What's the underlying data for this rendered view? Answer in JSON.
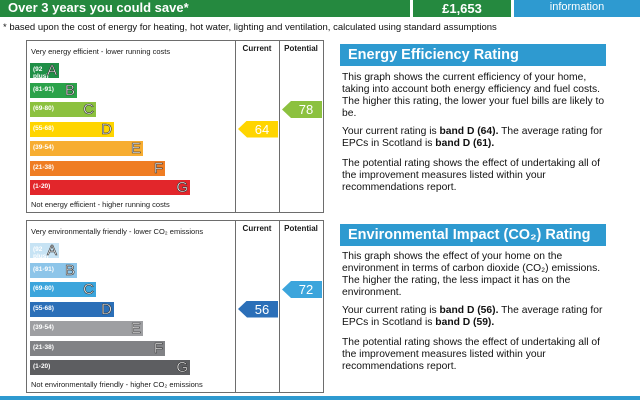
{
  "banner": {
    "title": "Over 3 years you could save*",
    "value": "£1,653",
    "info": "information"
  },
  "footnote": "* based upon the cost of energy for heating, hot water, lighting and ventilation, calculated using standard assumptions",
  "energy_graph": {
    "header_current": "Current",
    "header_potential": "Potential",
    "top_caption": "Very energy efficient - lower running costs",
    "bottom_caption": "Not energy efficient - higher running costs",
    "bands": [
      {
        "range": "(92 plus)",
        "letter": "A",
        "color": "#1f8f47",
        "width_frac": 0.14
      },
      {
        "range": "(81-91)",
        "letter": "B",
        "color": "#2ba24a",
        "width_frac": 0.23
      },
      {
        "range": "(69-80)",
        "letter": "C",
        "color": "#8cc13f",
        "width_frac": 0.32
      },
      {
        "range": "(55-68)",
        "letter": "D",
        "color": "#ffd500",
        "width_frac": 0.41
      },
      {
        "range": "(39-54)",
        "letter": "E",
        "color": "#f7ad31",
        "width_frac": 0.55
      },
      {
        "range": "(21-38)",
        "letter": "F",
        "color": "#ef7d23",
        "width_frac": 0.66
      },
      {
        "range": "(1-20)",
        "letter": "G",
        "color": "#e2262b",
        "width_frac": 0.78
      }
    ],
    "current": {
      "value": "64",
      "color": "#ffd500"
    },
    "potential": {
      "value": "78",
      "color": "#8cc13f"
    }
  },
  "env_graph": {
    "header_current": "Current",
    "header_potential": "Potential",
    "top_caption": "Very environmentally friendly - lower CO₂ emissions",
    "bottom_caption": "Not environmentally friendly - higher CO₂ emissions",
    "bands": [
      {
        "range": "(92 plus)",
        "letter": "A",
        "color": "#c7e3f4",
        "width_frac": 0.14
      },
      {
        "range": "(81-91)",
        "letter": "B",
        "color": "#8dc5e9",
        "width_frac": 0.23
      },
      {
        "range": "(69-80)",
        "letter": "C",
        "color": "#3ca5dc",
        "width_frac": 0.32
      },
      {
        "range": "(55-68)",
        "letter": "D",
        "color": "#2b6fb8",
        "width_frac": 0.41
      },
      {
        "range": "(39-54)",
        "letter": "E",
        "color": "#9e9fa2",
        "width_frac": 0.55
      },
      {
        "range": "(21-38)",
        "letter": "F",
        "color": "#818285",
        "width_frac": 0.66
      },
      {
        "range": "(1-20)",
        "letter": "G",
        "color": "#5d5e61",
        "width_frac": 0.78
      }
    ],
    "current": {
      "value": "56",
      "color": "#2b6fb8"
    },
    "potential": {
      "value": "72",
      "color": "#3ca5dc"
    }
  },
  "energy_text": {
    "heading": "Energy Efficiency Rating",
    "p1": "This graph shows the current efficiency of your home, taking into account both energy efficiency and fuel costs. The higher this rating, the lower your fuel bills are likely to be.",
    "p2_pre": "Your current rating is ",
    "p2_current": "band D (64).",
    "p2_mid": " The average rating for EPCs in Scotland is ",
    "p2_avg": "band D (61).",
    "p3": "The potential rating shows the effect of undertaking all of the improvement measures listed within your recommendations report."
  },
  "env_text": {
    "heading": "Environmental Impact (CO₂) Rating",
    "p1": "This graph shows the effect of your home on the environment in terms of carbon dioxide (CO₂) emissions. The higher the rating, the less impact it has on the environment.",
    "p2_pre": "Your current rating is ",
    "p2_current": "band D (56).",
    "p2_mid": " The average rating for EPCs in Scotland is ",
    "p2_avg": "band D (59).",
    "p3": "The potential rating shows the effect of undertaking all of the improvement measures listed within your recommendations report."
  }
}
